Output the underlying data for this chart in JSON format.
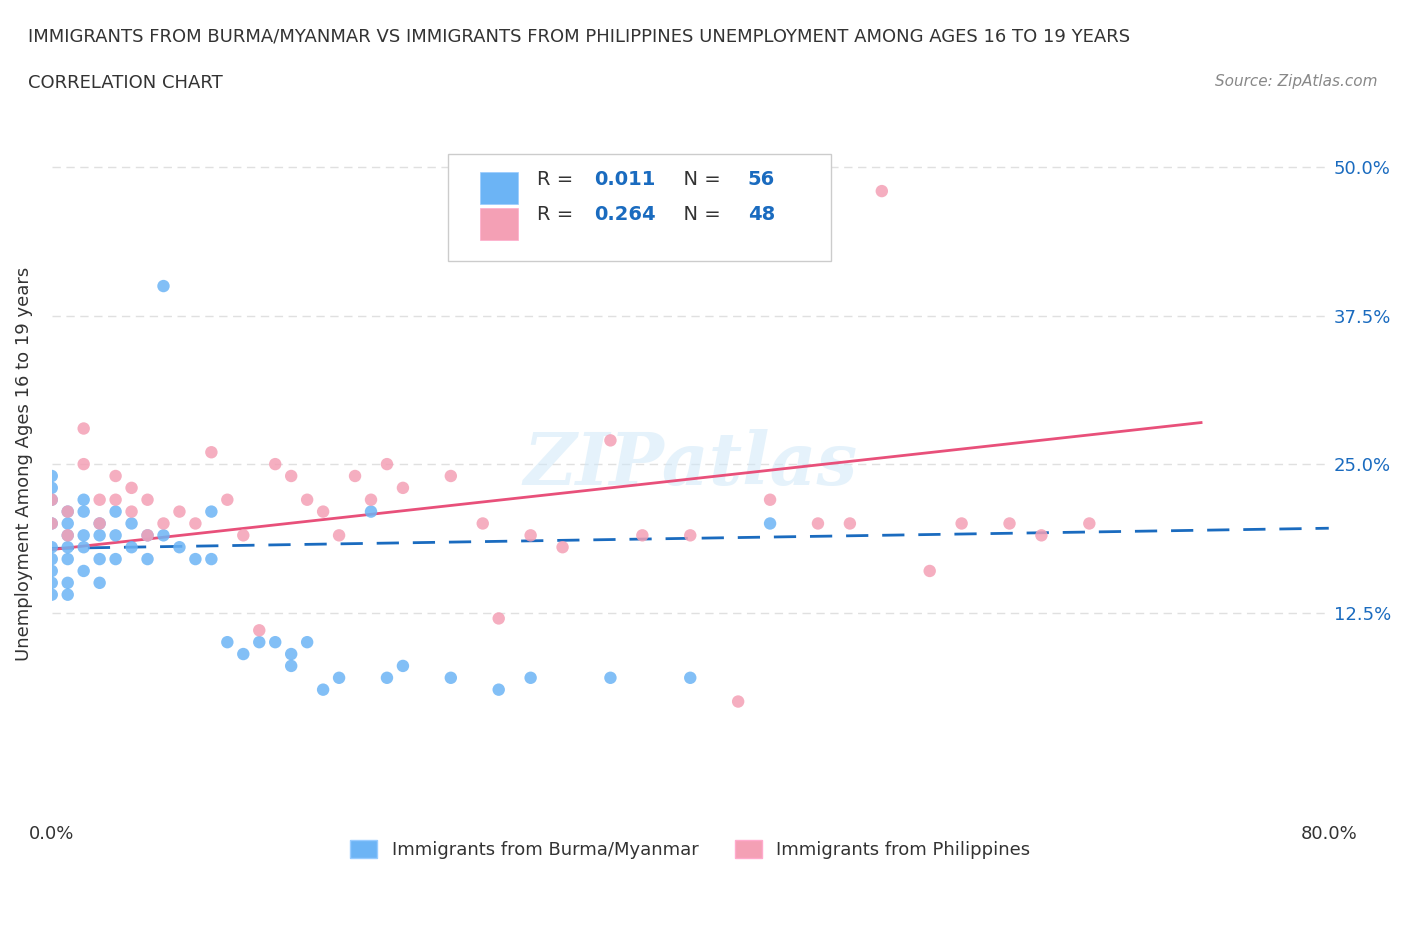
{
  "title_line1": "IMMIGRANTS FROM BURMA/MYANMAR VS IMMIGRANTS FROM PHILIPPINES UNEMPLOYMENT AMONG AGES 16 TO 19 YEARS",
  "title_line2": "CORRELATION CHART",
  "source_text": "Source: ZipAtlas.com",
  "watermark": "ZIPatlas",
  "xlabel": "",
  "ylabel": "Unemployment Among Ages 16 to 19 years",
  "xlim": [
    0.0,
    0.8
  ],
  "ylim": [
    -0.05,
    0.55
  ],
  "yticks": [
    0.0,
    0.125,
    0.25,
    0.375,
    0.5
  ],
  "ytick_labels": [
    "",
    "12.5%",
    "25.0%",
    "37.5%",
    "50.0%"
  ],
  "xticks": [
    0.0,
    0.2,
    0.4,
    0.6,
    0.8
  ],
  "xtick_labels": [
    "0.0%",
    "",
    "",
    "",
    "80.0%"
  ],
  "legend_box_color": "#ffffff",
  "legend_border_color": "#aaaaaa",
  "blue_R": "0.011",
  "blue_N": "56",
  "pink_R": "0.264",
  "pink_N": "48",
  "blue_color": "#6cb4f5",
  "pink_color": "#f4a0b5",
  "blue_line_color": "#1a6bbf",
  "pink_line_color": "#e8507a",
  "dot_dashed_color": "#6cb4f5",
  "grid_color": "#e0e0e0",
  "background_color": "#ffffff",
  "title_color": "#333333",
  "label_color": "#333333",
  "value_color": "#1a6bbf",
  "blue_scatter_x": [
    0.0,
    0.0,
    0.0,
    0.0,
    0.0,
    0.0,
    0.0,
    0.0,
    0.0,
    0.01,
    0.01,
    0.01,
    0.01,
    0.01,
    0.01,
    0.01,
    0.02,
    0.02,
    0.02,
    0.02,
    0.02,
    0.03,
    0.03,
    0.03,
    0.03,
    0.04,
    0.04,
    0.04,
    0.05,
    0.05,
    0.06,
    0.06,
    0.07,
    0.07,
    0.08,
    0.09,
    0.1,
    0.1,
    0.11,
    0.12,
    0.13,
    0.14,
    0.15,
    0.15,
    0.16,
    0.17,
    0.18,
    0.2,
    0.21,
    0.22,
    0.25,
    0.28,
    0.3,
    0.35,
    0.4,
    0.45
  ],
  "blue_scatter_y": [
    0.2,
    0.22,
    0.23,
    0.24,
    0.18,
    0.17,
    0.16,
    0.15,
    0.14,
    0.2,
    0.21,
    0.19,
    0.18,
    0.17,
    0.15,
    0.14,
    0.22,
    0.21,
    0.19,
    0.18,
    0.16,
    0.2,
    0.19,
    0.17,
    0.15,
    0.21,
    0.19,
    0.17,
    0.2,
    0.18,
    0.19,
    0.17,
    0.4,
    0.19,
    0.18,
    0.17,
    0.21,
    0.17,
    0.1,
    0.09,
    0.1,
    0.1,
    0.09,
    0.08,
    0.1,
    0.06,
    0.07,
    0.21,
    0.07,
    0.08,
    0.07,
    0.06,
    0.07,
    0.07,
    0.07,
    0.2
  ],
  "pink_scatter_x": [
    0.0,
    0.0,
    0.01,
    0.01,
    0.02,
    0.02,
    0.03,
    0.03,
    0.04,
    0.04,
    0.05,
    0.05,
    0.06,
    0.06,
    0.07,
    0.08,
    0.09,
    0.1,
    0.11,
    0.12,
    0.13,
    0.14,
    0.15,
    0.16,
    0.17,
    0.18,
    0.19,
    0.2,
    0.21,
    0.22,
    0.25,
    0.27,
    0.28,
    0.3,
    0.32,
    0.35,
    0.37,
    0.4,
    0.43,
    0.45,
    0.48,
    0.5,
    0.52,
    0.55,
    0.57,
    0.6,
    0.62,
    0.65
  ],
  "pink_scatter_y": [
    0.2,
    0.22,
    0.21,
    0.19,
    0.28,
    0.25,
    0.22,
    0.2,
    0.24,
    0.22,
    0.23,
    0.21,
    0.22,
    0.19,
    0.2,
    0.21,
    0.2,
    0.26,
    0.22,
    0.19,
    0.11,
    0.25,
    0.24,
    0.22,
    0.21,
    0.19,
    0.24,
    0.22,
    0.25,
    0.23,
    0.24,
    0.2,
    0.12,
    0.19,
    0.18,
    0.27,
    0.19,
    0.19,
    0.05,
    0.22,
    0.2,
    0.2,
    0.48,
    0.16,
    0.2,
    0.2,
    0.19,
    0.2
  ],
  "blue_trend_x": [
    0.0,
    0.8
  ],
  "blue_trend_y": [
    0.179,
    0.196
  ],
  "pink_trend_x": [
    0.0,
    0.72
  ],
  "pink_trend_y": [
    0.178,
    0.285
  ],
  "bottom_legend_blue": "Immigrants from Burma/Myanmar",
  "bottom_legend_pink": "Immigrants from Philippines"
}
